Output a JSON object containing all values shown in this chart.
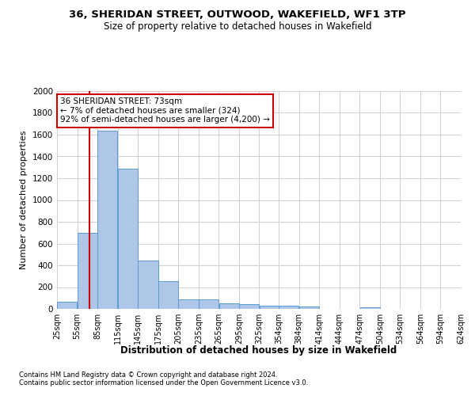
{
  "title1": "36, SHERIDAN STREET, OUTWOOD, WAKEFIELD, WF1 3TP",
  "title2": "Size of property relative to detached houses in Wakefield",
  "xlabel": "Distribution of detached houses by size in Wakefield",
  "ylabel": "Number of detached properties",
  "footer1": "Contains HM Land Registry data © Crown copyright and database right 2024.",
  "footer2": "Contains public sector information licensed under the Open Government Licence v3.0.",
  "annotation_line1": "36 SHERIDAN STREET: 73sqm",
  "annotation_line2": "← 7% of detached houses are smaller (324)",
  "annotation_line3": "92% of semi-detached houses are larger (4,200) →",
  "bar_edges": [
    25,
    55,
    85,
    115,
    145,
    175,
    205,
    235,
    265,
    295,
    325,
    354,
    384,
    414,
    444,
    474,
    504,
    534,
    564,
    594,
    624
  ],
  "bar_values": [
    65,
    695,
    1635,
    1285,
    445,
    253,
    90,
    88,
    52,
    45,
    30,
    27,
    20,
    0,
    0,
    18,
    0,
    0,
    0,
    0
  ],
  "bar_color": "#aec6e8",
  "bar_edge_color": "#5b9bd5",
  "vline_color": "#cc0000",
  "vline_x": 73,
  "annotation_box_color": "#cc0000",
  "background_color": "#ffffff",
  "grid_color": "#d0d0d0",
  "ylim": [
    0,
    2000
  ],
  "yticks": [
    0,
    200,
    400,
    600,
    800,
    1000,
    1200,
    1400,
    1600,
    1800,
    2000
  ]
}
